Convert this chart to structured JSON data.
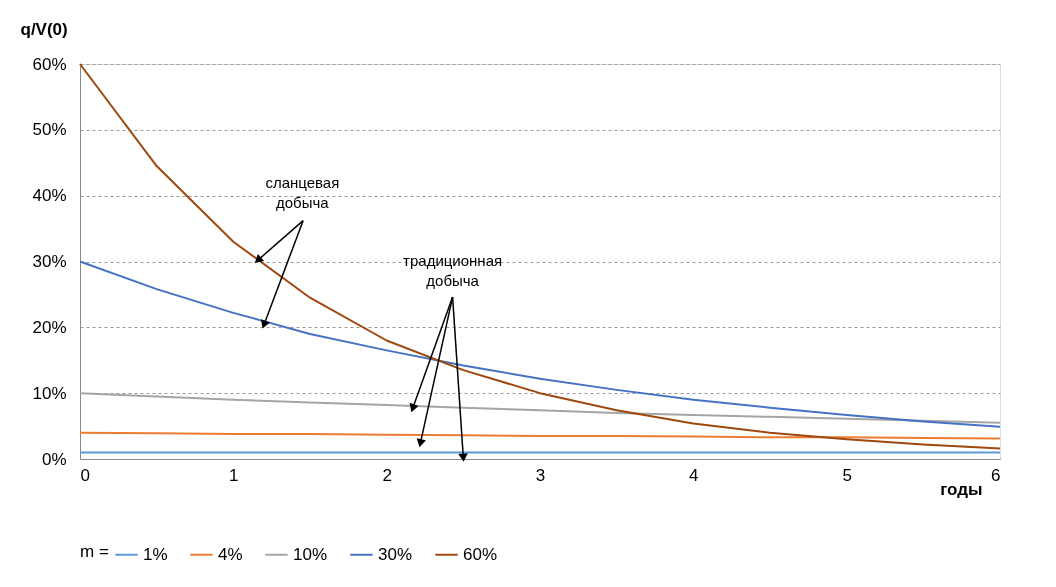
{
  "chart_data": {
    "type": "line",
    "ylabel": "q/V(0)",
    "xlabel": "годы",
    "legend_title": "m =",
    "x": [
      0,
      0.5,
      1,
      1.5,
      2,
      2.5,
      3,
      3.5,
      4,
      4.5,
      5,
      5.5,
      6
    ],
    "series": [
      {
        "name": "1%",
        "color": "#5b9bd5",
        "values": [
          1,
          1,
          1,
          1,
          1,
          1,
          1,
          1,
          1,
          1,
          1,
          1,
          1
        ]
      },
      {
        "name": "4%",
        "color": "#ed7d31",
        "values": [
          4,
          3.9,
          3.8,
          3.8,
          3.7,
          3.6,
          3.5,
          3.5,
          3.4,
          3.3,
          3.3,
          3.2,
          3.1
        ]
      },
      {
        "name": "10%",
        "color": "#a5a5a5",
        "values": [
          10,
          9.5,
          9,
          8.6,
          8.2,
          7.8,
          7.4,
          7,
          6.7,
          6.4,
          6.1,
          5.8,
          5.5
        ]
      },
      {
        "name": "30%",
        "color": "#4472c4",
        "values": [
          30,
          25.8,
          22.2,
          19,
          16.5,
          14.2,
          12.2,
          10.5,
          9,
          7.8,
          6.7,
          5.7,
          4.9
        ]
      },
      {
        "name": "60%",
        "color": "#9e480e",
        "values": [
          60,
          44.5,
          33,
          24.5,
          18,
          13.5,
          10,
          7.4,
          5.4,
          4,
          3,
          2.2,
          1.6
        ]
      }
    ],
    "xlim": [
      0,
      6
    ],
    "xticks": [
      0,
      1,
      2,
      3,
      4,
      5,
      6
    ],
    "ylim": [
      0,
      60
    ],
    "yticks": [
      {
        "value": 0,
        "label": "0%"
      },
      {
        "value": 10,
        "label": "10%"
      },
      {
        "value": 20,
        "label": "20%"
      },
      {
        "value": 30,
        "label": "30%"
      },
      {
        "value": 40,
        "label": "40%"
      },
      {
        "value": 50,
        "label": "50%"
      },
      {
        "value": 60,
        "label": "60%"
      }
    ],
    "annotations": [
      {
        "text": "сланцевая\nдобыча",
        "x": 1.16,
        "y": 30.2
      },
      {
        "text": "традиционная\nдобыча",
        "x": 2.17,
        "y": 7.7
      }
    ],
    "grid": "y",
    "legend": "bottom",
    "marker": "none",
    "line_style": "solid"
  }
}
